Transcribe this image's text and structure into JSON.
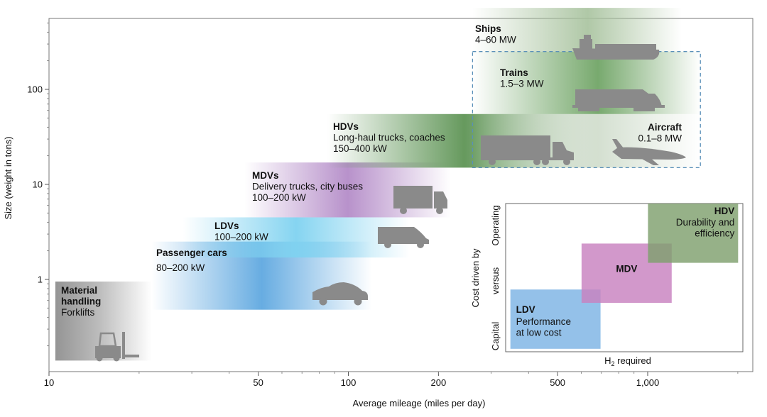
{
  "chart_data": {
    "type": "range",
    "title": "",
    "xlabel": "Average mileage (miles per day)",
    "ylabel": "Size (weight in tons)",
    "x_scale": "log",
    "y_scale": "log",
    "xlim": [
      10,
      3000
    ],
    "ylim": [
      0.1,
      600
    ],
    "x_ticks": [
      {
        "value": 10,
        "label": "10"
      },
      {
        "value": 50,
        "label": "50"
      },
      {
        "value": 100,
        "label": "100"
      },
      {
        "value": 200,
        "label": "200"
      },
      {
        "value": 500,
        "label": "500"
      },
      {
        "value": 1000,
        "label": "1,000"
      }
    ],
    "y_ticks": [
      {
        "value": 1,
        "label": "1"
      },
      {
        "value": 10,
        "label": "10"
      },
      {
        "value": 100,
        "label": "100"
      }
    ],
    "categories": [
      {
        "id": "material",
        "lines": [
          "Material",
          "handling"
        ],
        "sub": [
          "Forklifts"
        ],
        "x": [
          10.5,
          22
        ],
        "y": [
          0.14,
          0.95
        ],
        "color": "#8f8f8f",
        "icon": "forklift-icon"
      },
      {
        "id": "passenger",
        "lines": [
          "Passenger cars"
        ],
        "sub": [
          "80–200 kW"
        ],
        "x": [
          22,
          120
        ],
        "y": [
          0.48,
          2.5
        ],
        "color": "#5fa8e0",
        "icon": "car-icon"
      },
      {
        "id": "ldv",
        "lines": [
          "LDVs"
        ],
        "sub": [
          "100–200 kW"
        ],
        "x": [
          28,
          160
        ],
        "y": [
          1.7,
          4.5
        ],
        "color": "#7fd2f0",
        "icon": "van-icon"
      },
      {
        "id": "mdv",
        "lines": [
          "MDVs"
        ],
        "sub": [
          "Delivery trucks, city buses",
          "100–200 kW"
        ],
        "x": [
          45,
          220
        ],
        "y": [
          4.5,
          17
        ],
        "color": "#b48cc8",
        "icon": "box-truck-icon"
      },
      {
        "id": "hdv",
        "lines": [
          "HDVs"
        ],
        "sub": [
          "Long-haul trucks, coaches",
          "150–400 kW"
        ],
        "x": [
          85,
          700
        ],
        "y": [
          15,
          55
        ],
        "color": "#5e9455",
        "icon": "semi-truck-icon"
      },
      {
        "id": "aircraft",
        "lines": [
          "Aircraft"
        ],
        "sub": [
          "0.1–8 MW"
        ],
        "x": [
          260,
          1500
        ],
        "y": [
          15,
          55
        ],
        "color": "#cfdccb",
        "icon": "airplane-icon"
      },
      {
        "id": "trains",
        "lines": [
          "Trains"
        ],
        "sub": [
          "1.5–3 MW"
        ],
        "x": [
          260,
          1500
        ],
        "y": [
          55,
          250
        ],
        "color": "#69a05e",
        "icon": "locomotive-icon"
      },
      {
        "id": "ships",
        "lines": [
          "Ships"
        ],
        "sub": [
          "4–60 MW"
        ],
        "x": [
          260,
          1300
        ],
        "y": [
          250,
          720
        ],
        "color": "#a7c29d",
        "icon": "ship-icon"
      }
    ],
    "inset": {
      "ylabel": "Cost driven by",
      "y_low": "Capital",
      "y_mid": "versus",
      "y_high": "Operating",
      "xlabel_main": "H",
      "xlabel_sub": "2",
      "xlabel_rest": " required",
      "boxes": [
        {
          "id": "ldv",
          "title": "LDV",
          "lines": [
            "Performance",
            "at low cost"
          ],
          "color": "#7db3e4",
          "x": [
            0.02,
            0.4
          ],
          "y": [
            0.02,
            0.42
          ]
        },
        {
          "id": "mdv",
          "title": "MDV",
          "lines": [],
          "color": "#c881c0",
          "x": [
            0.32,
            0.7
          ],
          "y": [
            0.33,
            0.73
          ]
        },
        {
          "id": "hdv",
          "title": "HDV",
          "lines": [
            "Durability and",
            "efficiency"
          ],
          "color": "#7fa06e",
          "x": [
            0.6,
            0.98
          ],
          "y": [
            0.6,
            1.0
          ]
        }
      ]
    }
  }
}
